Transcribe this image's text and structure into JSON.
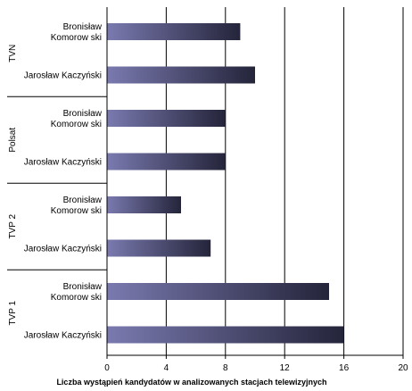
{
  "chart_data": {
    "type": "bar",
    "orientation": "horizontal",
    "xlabel": "Liczba wystąpień kandydatów w analizowanych stacjach telewizyjnych",
    "xlim": [
      0,
      20
    ],
    "xticks": [
      "0",
      "4",
      "8",
      "12",
      "16",
      "20"
    ],
    "grid": "vertical",
    "groups": [
      {
        "name": "TVN",
        "bars": [
          {
            "label": [
              "Bronisław",
              "Komorow ski"
            ],
            "value": 9
          },
          {
            "label": [
              "Jarosław  Kaczyński"
            ],
            "value": 10
          }
        ]
      },
      {
        "name": "Polsat",
        "bars": [
          {
            "label": [
              "Bronisław",
              "Komorow ski"
            ],
            "value": 8
          },
          {
            "label": [
              "Jarosław  Kaczyński"
            ],
            "value": 8
          }
        ]
      },
      {
        "name": "TVP 2",
        "bars": [
          {
            "label": [
              "Bronisław",
              "Komorow ski"
            ],
            "value": 5
          },
          {
            "label": [
              "Jarosław  Kaczyński"
            ],
            "value": 7
          }
        ]
      },
      {
        "name": "TVP 1",
        "bars": [
          {
            "label": [
              "Bronisław",
              "Komorow ski"
            ],
            "value": 15
          },
          {
            "label": [
              "Jarosław  Kaczyński"
            ],
            "value": 16
          }
        ]
      }
    ],
    "colors": {
      "bar_start": "#7a7ab0",
      "bar_end": "#24243a",
      "axis": "#000000"
    }
  }
}
